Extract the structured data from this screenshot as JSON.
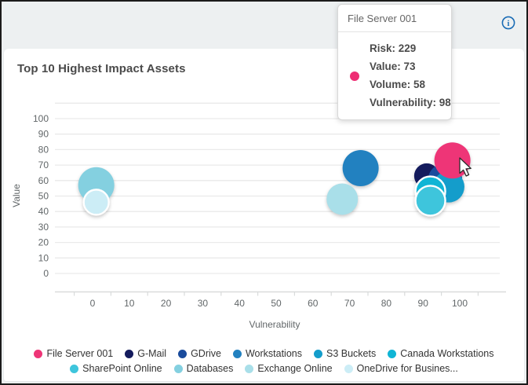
{
  "header": {
    "info_icon_glyph": "i"
  },
  "card": {
    "title": "Top 10 Highest Impact Assets"
  },
  "tooltip": {
    "title": "File Server 001",
    "rows": [
      "Risk: 229",
      "Value: 73",
      "Volume: 58",
      "Vulnerability: 98"
    ],
    "dot_color": "#ee2e74"
  },
  "chart_data": {
    "type": "scatter",
    "subtype": "bubble",
    "title": "Top 10 Highest Impact Assets",
    "xlabel": "Vulnerability",
    "ylabel": "Value",
    "xlim": [
      0,
      100
    ],
    "ylim": [
      0,
      100
    ],
    "x_ticks": [
      0,
      10,
      20,
      30,
      40,
      50,
      60,
      70,
      80,
      90,
      100
    ],
    "y_ticks": [
      0,
      10,
      20,
      30,
      40,
      50,
      60,
      70,
      80,
      90,
      100
    ],
    "grid": true,
    "legend_position": "bottom",
    "hovered_point": {
      "name": "File Server 001",
      "risk": 229,
      "value": 73,
      "volume": 58,
      "vulnerability": 98
    },
    "series": [
      {
        "name": "File Server 001",
        "color": "#ee3577",
        "x": 98,
        "y": 73,
        "size": 23,
        "white_stroke": false
      },
      {
        "name": "G-Mail",
        "color": "#141b5d",
        "x": 91,
        "y": 63,
        "size": 16,
        "white_stroke": false
      },
      {
        "name": "GDrive",
        "color": "#1a4b9c",
        "x": 96,
        "y": 60,
        "size": 22,
        "white_stroke": false
      },
      {
        "name": "Workstations",
        "color": "#2281c0",
        "x": 73,
        "y": 68,
        "size": 23,
        "white_stroke": false
      },
      {
        "name": "S3 Buckets",
        "color": "#149dcb",
        "x": 97,
        "y": 56,
        "size": 20,
        "white_stroke": false
      },
      {
        "name": "Canada Workstations",
        "color": "#10b5d5",
        "x": 92,
        "y": 53,
        "size": 19,
        "white_stroke": true
      },
      {
        "name": "SharePoint Online",
        "color": "#3ec5dc",
        "x": 92,
        "y": 47,
        "size": 19,
        "white_stroke": true
      },
      {
        "name": "Databases",
        "color": "#84d0e0",
        "x": 1,
        "y": 57,
        "size": 23,
        "white_stroke": false
      },
      {
        "name": "Exchange Online",
        "color": "#a9dfe9",
        "x": 68,
        "y": 48,
        "size": 20,
        "white_stroke": false
      },
      {
        "name": "OneDrive for Busines...",
        "color": "#ccedf6",
        "x": 1,
        "y": 46,
        "size": 16,
        "white_stroke": true
      }
    ],
    "draw_order": [
      7,
      8,
      3,
      1,
      2,
      4,
      5,
      6,
      9,
      0
    ]
  },
  "legend": {
    "row_split": 6
  }
}
